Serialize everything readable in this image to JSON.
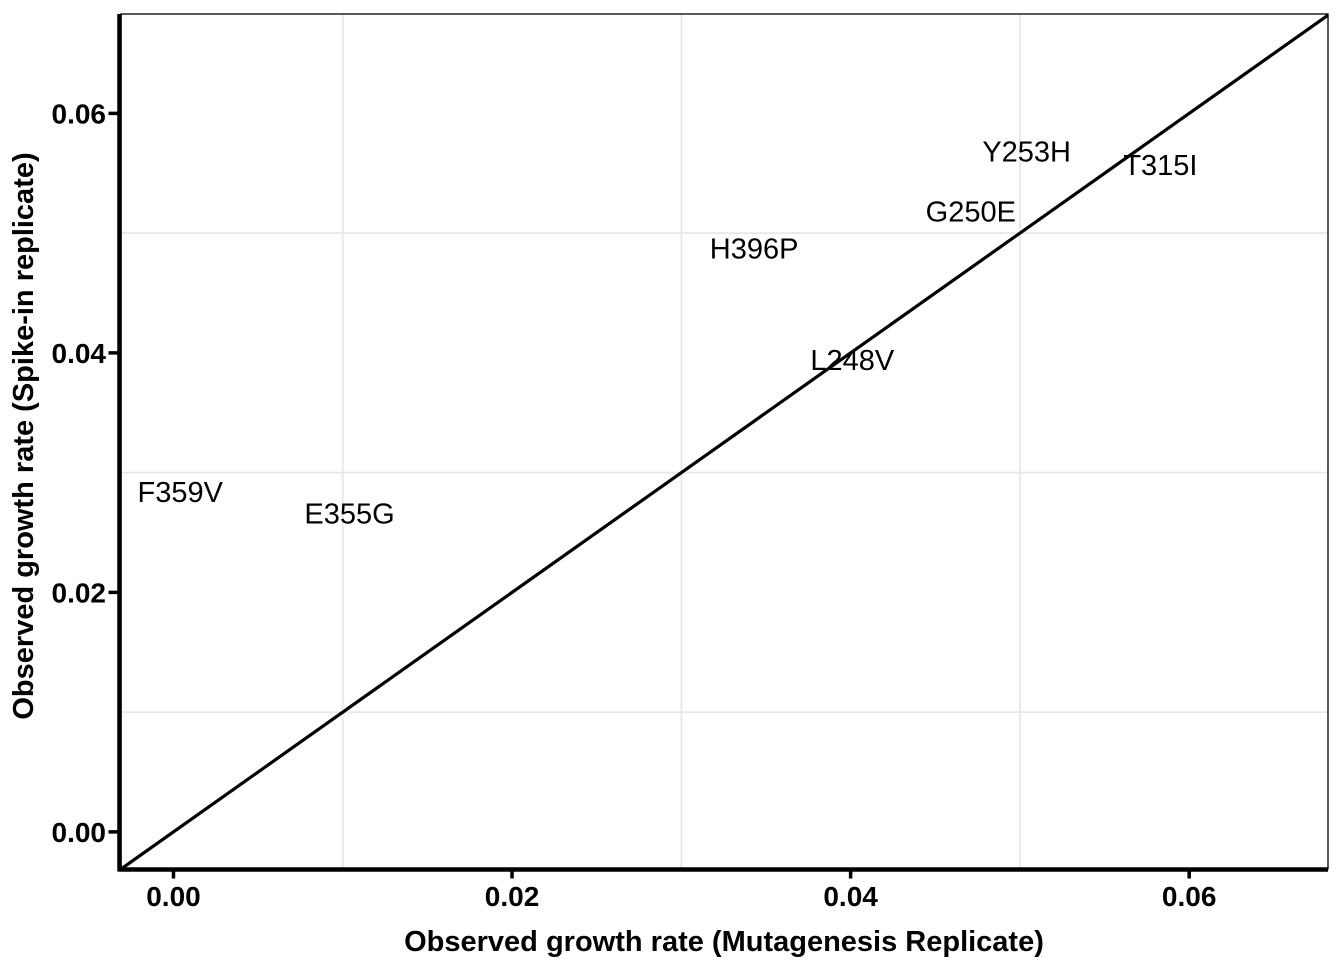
{
  "figure": {
    "background_color": "#ffffff",
    "text_color": "#000000",
    "grid_color": "#e7e7e7",
    "axis_color": "#000000",
    "line_color": "#000000"
  },
  "chart_data": {
    "type": "scatter",
    "title": "",
    "xlabel": "Observed growth rate (Mutagenesis Replicate)",
    "ylabel": "Observed growth rate (Spike-in replicate)",
    "xlim": [
      -0.0031,
      0.0682
    ],
    "ylim": [
      -0.0031,
      0.0683
    ],
    "xticks": {
      "values": [
        0.0,
        0.02,
        0.04,
        0.06
      ],
      "labels": [
        "0.00",
        "0.02",
        "0.04",
        "0.06"
      ]
    },
    "yticks": {
      "values": [
        0.0,
        0.02,
        0.04,
        0.06
      ],
      "labels": [
        "0.00",
        "0.02",
        "0.04",
        "0.06"
      ]
    },
    "minor_gridlines": {
      "x": [
        0.01,
        0.03,
        0.05
      ],
      "y": [
        0.01,
        0.03,
        0.05
      ]
    },
    "grid": "minor-only",
    "legend": "none",
    "identity_line": {
      "slope": 1,
      "intercept": 0
    },
    "point_style": "text-labels-at-data-points",
    "points": [
      {
        "label": "Y253H",
        "x": 0.0504,
        "y": 0.0568
      },
      {
        "label": "T315I",
        "x": 0.0583,
        "y": 0.0557
      },
      {
        "label": "G250E",
        "x": 0.0471,
        "y": 0.0518
      },
      {
        "label": "H396P",
        "x": 0.0343,
        "y": 0.0487
      },
      {
        "label": "L248V",
        "x": 0.0401,
        "y": 0.0394
      },
      {
        "label": "F359V",
        "x": 0.0004,
        "y": 0.0284
      },
      {
        "label": "E355G",
        "x": 0.0104,
        "y": 0.0266
      }
    ]
  }
}
